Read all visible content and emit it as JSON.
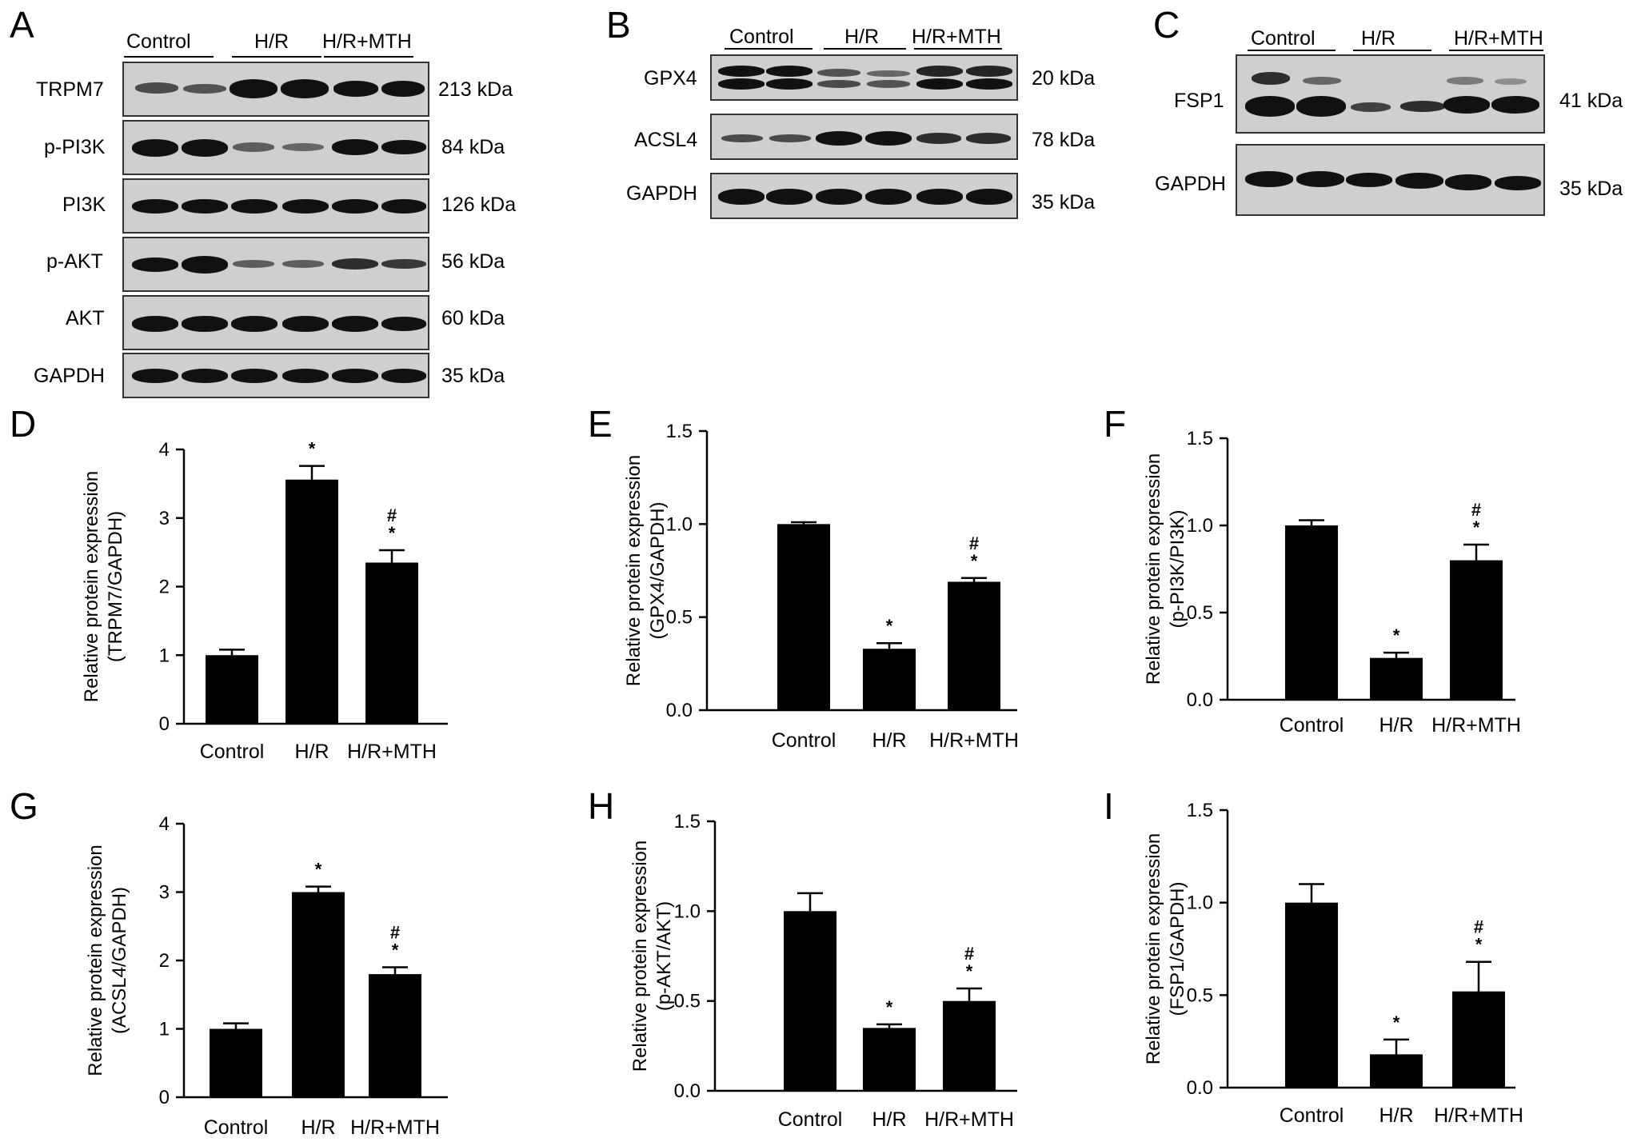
{
  "panels": [
    "A",
    "B",
    "C",
    "D",
    "E",
    "F",
    "G",
    "H",
    "I"
  ],
  "blot_a": {
    "groups": [
      "Control",
      "H/R",
      "H/R+MTH"
    ],
    "rows": [
      {
        "name": "TRPM7",
        "kda": "213 kDa"
      },
      {
        "name": "p-PI3K",
        "kda": "84 kDa"
      },
      {
        "name": "PI3K",
        "kda": "126 kDa"
      },
      {
        "name": "p-AKT",
        "kda": "56 kDa"
      },
      {
        "name": "AKT",
        "kda": "60 kDa"
      },
      {
        "name": "GAPDH",
        "kda": "35 kDa"
      }
    ]
  },
  "blot_b": {
    "groups": [
      "Control",
      "H/R",
      "H/R+MTH"
    ],
    "rows": [
      {
        "name": "GPX4",
        "kda": "20 kDa"
      },
      {
        "name": "ACSL4",
        "kda": "78 kDa"
      },
      {
        "name": "GAPDH",
        "kda": "35 kDa"
      }
    ]
  },
  "blot_c": {
    "groups": [
      "Control",
      "H/R",
      "H/R+MTH"
    ],
    "rows": [
      {
        "name": "FSP1",
        "kda": "41 kDa"
      },
      {
        "name": "GAPDH",
        "kda": "35 kDa"
      }
    ]
  },
  "chart_data": [
    {
      "panel": "D",
      "type": "bar",
      "categories": [
        "Control",
        "H/R",
        "H/R+MTH"
      ],
      "values": [
        1.0,
        3.56,
        2.35
      ],
      "errors": [
        0.08,
        0.2,
        0.18
      ],
      "annotations": [
        [],
        [
          "*"
        ],
        [
          "#",
          "*"
        ]
      ],
      "ylabel": [
        "Relative protein expression",
        "(TRPM7/GAPDH)"
      ],
      "ylim": [
        0,
        4
      ],
      "yticks": [
        "0",
        "1",
        "2",
        "3",
        "4"
      ]
    },
    {
      "panel": "E",
      "type": "bar",
      "categories": [
        "Control",
        "H/R",
        "H/R+MTH"
      ],
      "values": [
        1.0,
        0.33,
        0.69
      ],
      "errors": [
        0.01,
        0.03,
        0.02
      ],
      "annotations": [
        [],
        [
          "*"
        ],
        [
          "#",
          "*"
        ]
      ],
      "ylabel": [
        "Relative protein expression",
        "(GPX4/GAPDH)"
      ],
      "ylim": [
        0,
        1.5
      ],
      "yticks": [
        "0.0",
        "0.5",
        "1.0",
        "1.5"
      ]
    },
    {
      "panel": "F",
      "type": "bar",
      "categories": [
        "Control",
        "H/R",
        "H/R+MTH"
      ],
      "values": [
        1.0,
        0.24,
        0.8
      ],
      "errors": [
        0.03,
        0.03,
        0.09
      ],
      "annotations": [
        [],
        [
          "*"
        ],
        [
          "#",
          "*"
        ]
      ],
      "ylabel": [
        "Relative protein expression",
        "(p-PI3K/PI3K)"
      ],
      "ylim": [
        0,
        1.5
      ],
      "yticks": [
        "0.0",
        "0.5",
        "1.0",
        "1.5"
      ]
    },
    {
      "panel": "G",
      "type": "bar",
      "categories": [
        "Control",
        "H/R",
        "H/R+MTH"
      ],
      "values": [
        1.0,
        3.0,
        1.8
      ],
      "errors": [
        0.08,
        0.08,
        0.1
      ],
      "annotations": [
        [],
        [
          "*"
        ],
        [
          "#",
          "*"
        ]
      ],
      "ylabel": [
        "Relative protein expression",
        "(ACSL4/GAPDH)"
      ],
      "ylim": [
        0,
        4
      ],
      "yticks": [
        "0",
        "1",
        "2",
        "3",
        "4"
      ]
    },
    {
      "panel": "H",
      "type": "bar",
      "categories": [
        "Control",
        "H/R",
        "H/R+MTH"
      ],
      "values": [
        1.0,
        0.35,
        0.5
      ],
      "errors": [
        0.1,
        0.02,
        0.07
      ],
      "annotations": [
        [],
        [
          "*"
        ],
        [
          "#",
          "*"
        ]
      ],
      "ylabel": [
        "Relative protein expression",
        "(p-AKT/AKT)"
      ],
      "ylim": [
        0,
        1.5
      ],
      "yticks": [
        "0.0",
        "0.5",
        "1.0",
        "1.5"
      ]
    },
    {
      "panel": "I",
      "type": "bar",
      "categories": [
        "Control",
        "H/R",
        "H/R+MTH"
      ],
      "values": [
        1.0,
        0.18,
        0.52
      ],
      "errors": [
        0.1,
        0.08,
        0.16
      ],
      "annotations": [
        [],
        [
          "*"
        ],
        [
          "#",
          "*"
        ]
      ],
      "ylabel": [
        "Relative protein expression",
        "(FSP1/GAPDH)"
      ],
      "ylim": [
        0,
        1.5
      ],
      "yticks": [
        "0.0",
        "0.5",
        "1.0",
        "1.5"
      ]
    }
  ]
}
